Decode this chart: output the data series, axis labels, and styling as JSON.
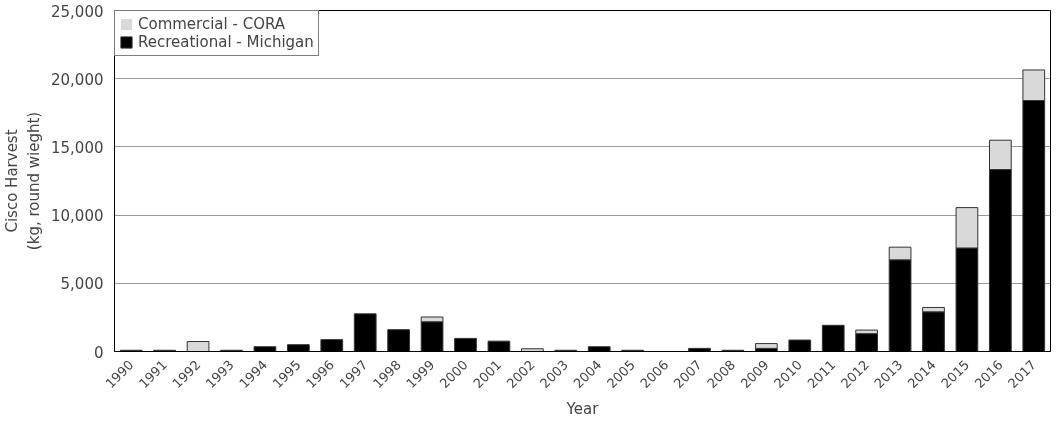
{
  "chart_data": {
    "type": "bar",
    "stacked": true,
    "xlabel": "Year",
    "ylabel": "Cisco Harvest\n(kg, round wieght)",
    "categories": [
      "1990",
      "1991",
      "1992",
      "1993",
      "1994",
      "1995",
      "1996",
      "1997",
      "1998",
      "1999",
      "2000",
      "2001",
      "2002",
      "2003",
      "2004",
      "2005",
      "2006",
      "2007",
      "2008",
      "2009",
      "2010",
      "2011",
      "2012",
      "2013",
      "2014",
      "2015",
      "2016",
      "2017"
    ],
    "series": [
      {
        "name": "Recreational - Michigan",
        "color": "#000000",
        "values": [
          90,
          90,
          0,
          90,
          350,
          500,
          870,
          2760,
          1600,
          2180,
          960,
          760,
          0,
          90,
          350,
          90,
          0,
          230,
          90,
          230,
          840,
          1920,
          1310,
          6720,
          2910,
          7590,
          13340,
          18400
        ]
      },
      {
        "name": "Commercial - CORA",
        "color": "#d9d9d9",
        "values": [
          0,
          0,
          730,
          0,
          0,
          0,
          0,
          0,
          0,
          350,
          0,
          0,
          200,
          0,
          0,
          0,
          0,
          0,
          0,
          350,
          0,
          0,
          260,
          930,
          320,
          2960,
          2150,
          2240
        ]
      }
    ],
    "ylim": [
      0,
      25000
    ],
    "yticks": [
      {
        "value": 0,
        "label": "0"
      },
      {
        "value": 5000,
        "label": "5,000"
      },
      {
        "value": 10000,
        "label": "10,000"
      },
      {
        "value": 15000,
        "label": "15,000"
      },
      {
        "value": 20000,
        "label": "20,000"
      },
      {
        "value": 25000,
        "label": "25,000"
      }
    ],
    "grid": "y",
    "legend": "top left"
  }
}
